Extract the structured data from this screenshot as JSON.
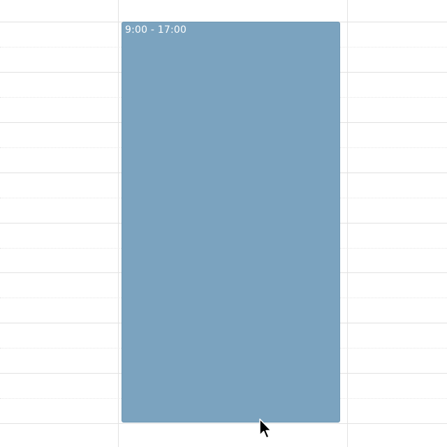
{
  "calendar": {
    "event": {
      "time_label": "9:00 - 17:00",
      "color": "#7ba3bf",
      "border_color": "#6f97b3",
      "text_color": "#ffffff"
    },
    "grid": {
      "line_color": "#e1e1e1",
      "background": "#ffffff"
    }
  },
  "cursor": {
    "icon": "arrow-pointer-icon"
  }
}
